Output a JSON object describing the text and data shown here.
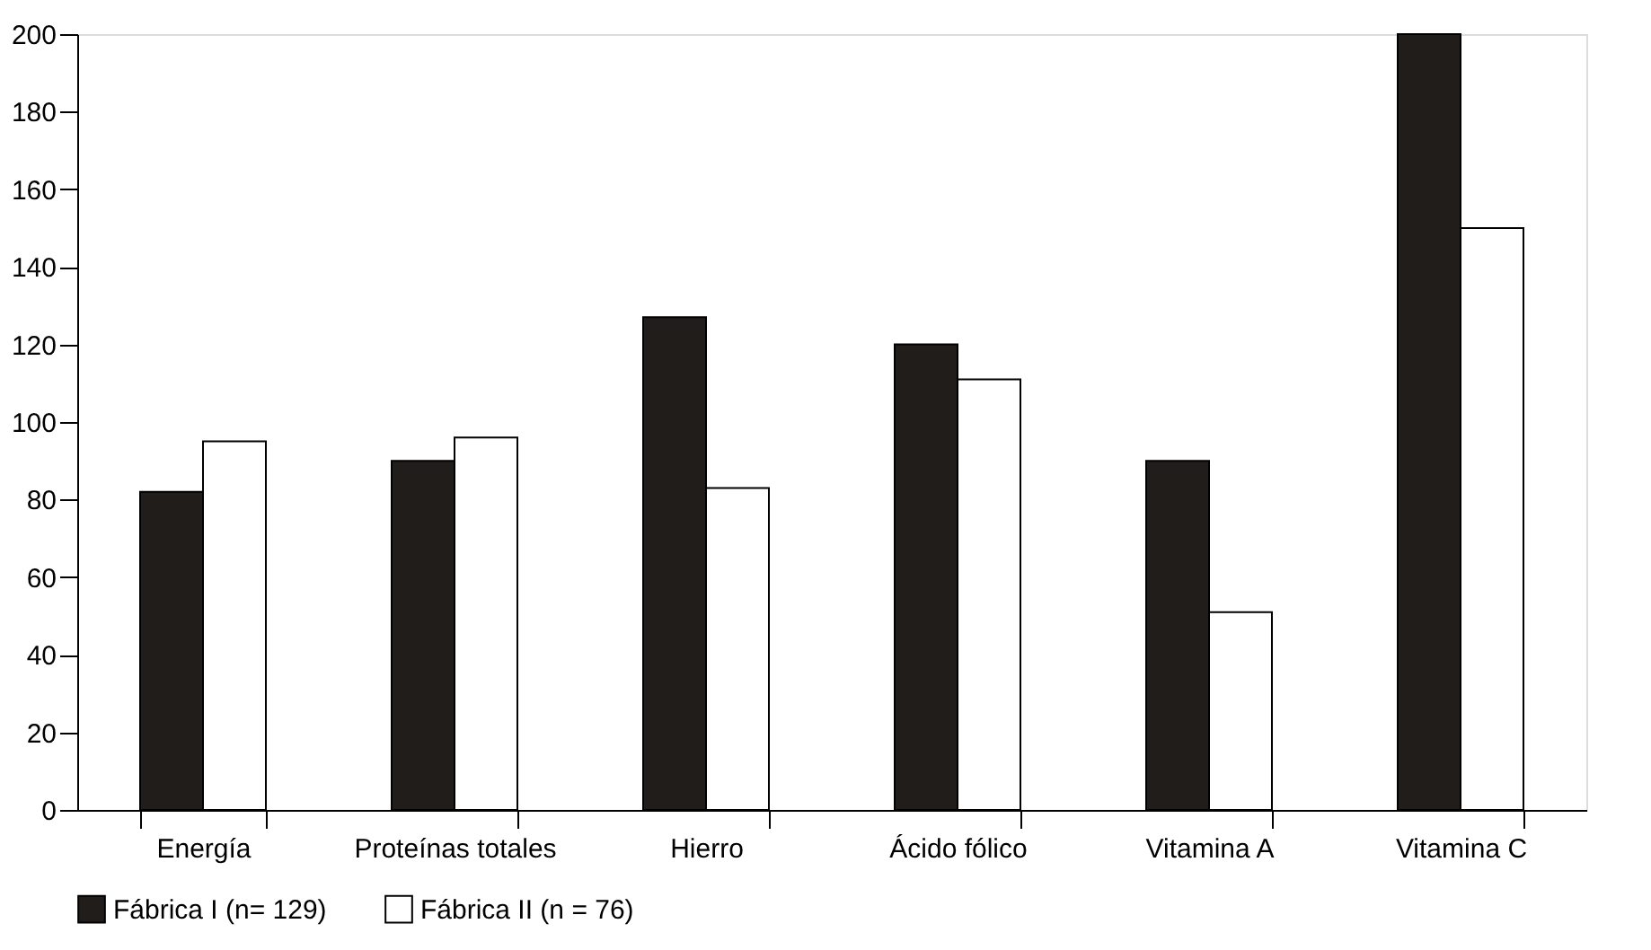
{
  "chart_data": {
    "type": "bar",
    "categories": [
      "Energía",
      "Proteínas totales",
      "Hierro",
      "Ácido fólico",
      "Vitamina A",
      "Vitamina C"
    ],
    "series": [
      {
        "name": "Fábrica I (n= 129)",
        "color": "#211d1a",
        "values": [
          82,
          90,
          127,
          120,
          90,
          200
        ]
      },
      {
        "name": "Fábrica II (n = 76)",
        "color": "#ffffff",
        "values": [
          95,
          96,
          83,
          111,
          51,
          150
        ]
      }
    ],
    "ylim": [
      0,
      200
    ],
    "yticks": [
      0,
      20,
      40,
      60,
      80,
      100,
      120,
      140,
      160,
      180,
      200
    ],
    "grid": false,
    "legend": "bottom"
  }
}
